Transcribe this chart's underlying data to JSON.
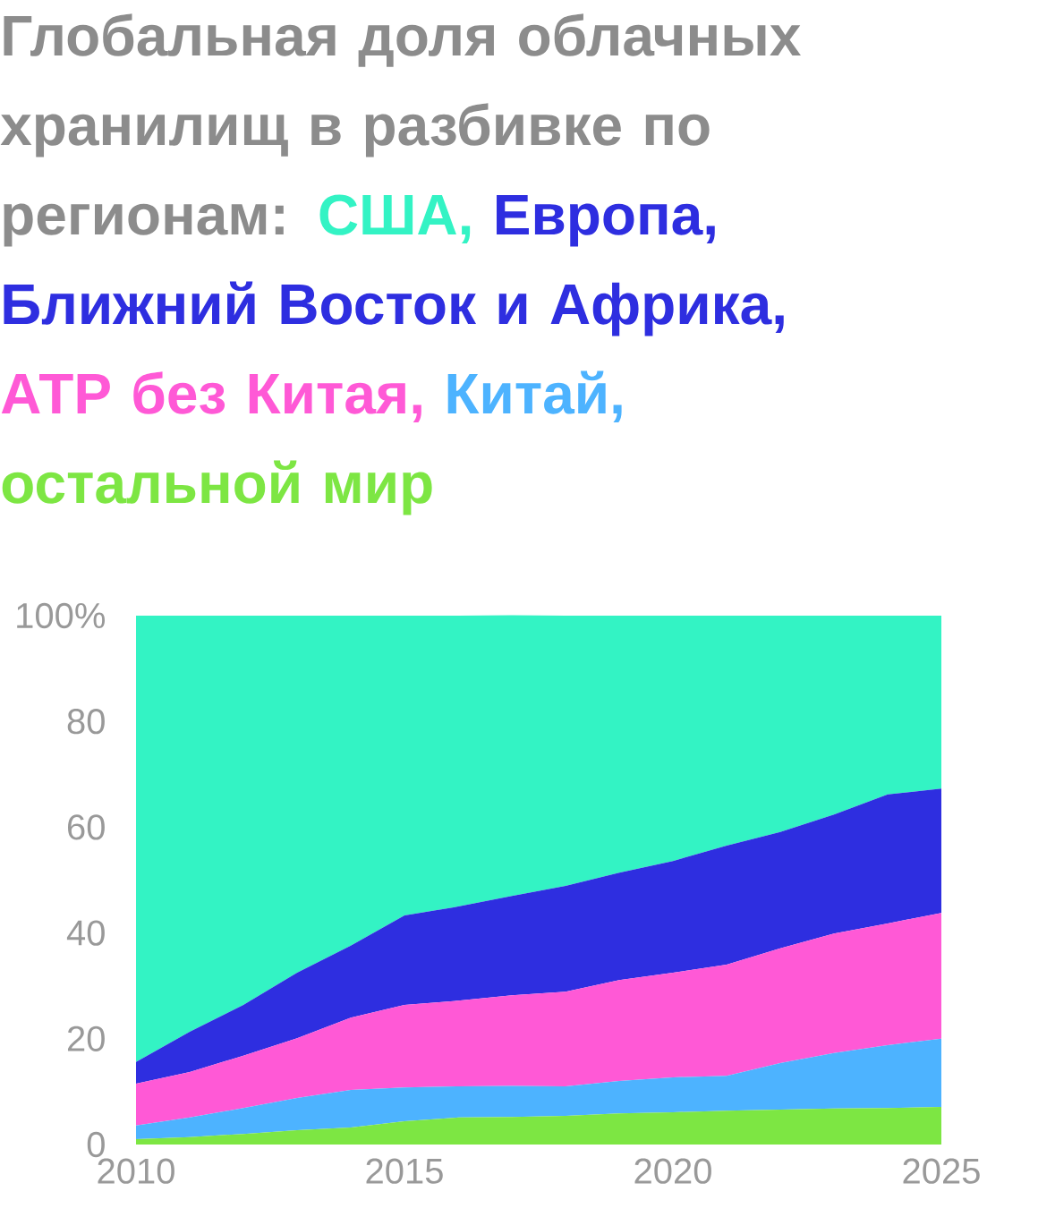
{
  "chart_data": {
    "type": "area",
    "title": "Глобальная доля облачных хранилищ в разбивке по регионам:",
    "stacked": true,
    "annotations": [
      ",",
      ",",
      ",",
      ","
    ],
    "x": [
      2010,
      2011,
      2012,
      2013,
      2014,
      2015,
      2016,
      2017,
      2018,
      2019,
      2020,
      2021,
      2022,
      2023,
      2024,
      2025
    ],
    "xlim": [
      2010,
      2025
    ],
    "xticks": [
      2010,
      2015,
      2020,
      2025
    ],
    "ylim": [
      0,
      100
    ],
    "yticks": [
      0,
      20,
      40,
      60,
      80,
      {
        "value": 100,
        "label": "100%"
      }
    ],
    "series": [
      {
        "name": "остальной мир",
        "color": "#7de643",
        "values": [
          1.0,
          1.4,
          2.0,
          2.7,
          3.2,
          4.4,
          5.1,
          5.2,
          5.4,
          5.9,
          6.1,
          6.4,
          6.6,
          6.8,
          6.9,
          7.1
        ]
      },
      {
        "name": "Китай",
        "color": "#4db3ff",
        "values": [
          2.6,
          3.7,
          4.9,
          6.1,
          7.1,
          6.4,
          5.9,
          5.9,
          5.6,
          6.1,
          6.6,
          6.6,
          8.8,
          10.5,
          11.9,
          12.9
        ]
      },
      {
        "name": "АТР без Китая",
        "color": "#ff59d6",
        "values": [
          7.9,
          8.6,
          9.9,
          11.3,
          13.7,
          15.6,
          16.2,
          17.1,
          17.9,
          19.1,
          19.8,
          21.0,
          21.7,
          22.6,
          23.0,
          23.8
        ]
      },
      {
        "name": "Европа, Ближний Восток и Африка",
        "color": "#2e2ee0",
        "values": [
          4.1,
          7.6,
          9.6,
          12.4,
          13.6,
          16.9,
          17.8,
          18.8,
          20.0,
          20.3,
          21.1,
          22.5,
          22.0,
          22.5,
          24.4,
          23.5
        ]
      },
      {
        "name": "США",
        "color": "#33f3c4",
        "values": [
          84.4,
          78.7,
          73.6,
          67.5,
          62.4,
          56.7,
          55.0,
          53.1,
          51.1,
          48.6,
          46.4,
          43.5,
          40.9,
          37.6,
          33.8,
          32.7
        ]
      }
    ]
  }
}
